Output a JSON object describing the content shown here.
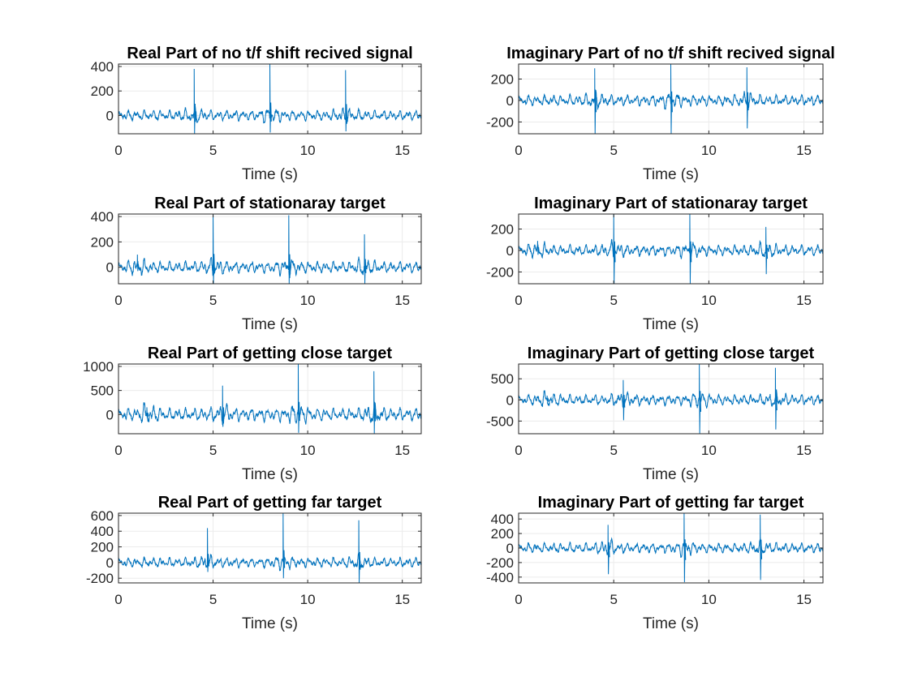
{
  "figure": {
    "background": "#ffffff",
    "line_color": "#0072bd",
    "grid_color": "#ebebeb",
    "axis_color": "#262626"
  },
  "chart_data": [
    {
      "type": "line",
      "title": "Real Part of no t/f shift recived signal",
      "xlabel": "Time (s)",
      "ylabel": "",
      "xlim": [
        0,
        16
      ],
      "ylim": [
        -150,
        420
      ],
      "xticks": [
        0,
        5,
        10,
        15
      ],
      "yticks": [
        0,
        200,
        400
      ],
      "grid": true,
      "series": [
        {
          "x_range": [
            0,
            16
          ],
          "noise_amplitude": 38,
          "spikes": [
            {
              "t": 4.0,
              "peak": 380,
              "trough": -150
            },
            {
              "t": 8.0,
              "peak": 420,
              "trough": -140
            },
            {
              "t": 12.0,
              "peak": 370,
              "trough": -130
            }
          ]
        }
      ]
    },
    {
      "type": "line",
      "title": "Imaginary Part of no t/f shift recived signal",
      "xlabel": "Time (s)",
      "ylabel": "",
      "xlim": [
        0,
        16
      ],
      "ylim": [
        -310,
        340
      ],
      "xticks": [
        0,
        5,
        10,
        15
      ],
      "yticks": [
        -200,
        0,
        200
      ],
      "grid": true,
      "series": [
        {
          "x_range": [
            0,
            16
          ],
          "noise_amplitude": 45,
          "spikes": [
            {
              "t": 4.0,
              "peak": 300,
              "trough": -310
            },
            {
              "t": 8.0,
              "peak": 340,
              "trough": -310
            },
            {
              "t": 12.0,
              "peak": 310,
              "trough": -260
            }
          ]
        }
      ]
    },
    {
      "type": "line",
      "title": "Real Part of stationaray target",
      "xlabel": "Time (s)",
      "ylabel": "",
      "xlim": [
        0,
        16
      ],
      "ylim": [
        -130,
        420
      ],
      "xticks": [
        0,
        5,
        10,
        15
      ],
      "yticks": [
        0,
        200,
        400
      ],
      "grid": true,
      "series": [
        {
          "x_range": [
            0,
            16
          ],
          "noise_amplitude": 40,
          "spikes": [
            {
              "t": 1.0,
              "peak": 100,
              "trough": -30
            },
            {
              "t": 5.0,
              "peak": 420,
              "trough": -130
            },
            {
              "t": 9.0,
              "peak": 410,
              "trough": -130
            },
            {
              "t": 13.0,
              "peak": 260,
              "trough": -130
            }
          ]
        }
      ]
    },
    {
      "type": "line",
      "title": "Imaginary Part of stationaray target",
      "xlabel": "Time (s)",
      "ylabel": "",
      "xlim": [
        0,
        16
      ],
      "ylim": [
        -310,
        340
      ],
      "xticks": [
        0,
        5,
        10,
        15
      ],
      "yticks": [
        -200,
        0,
        200
      ],
      "grid": true,
      "series": [
        {
          "x_range": [
            0,
            16
          ],
          "noise_amplitude": 45,
          "spikes": [
            {
              "t": 1.0,
              "peak": 90,
              "trough": -40
            },
            {
              "t": 5.0,
              "peak": 340,
              "trough": -310
            },
            {
              "t": 9.0,
              "peak": 340,
              "trough": -310
            },
            {
              "t": 13.0,
              "peak": 220,
              "trough": -220
            }
          ]
        }
      ]
    },
    {
      "type": "line",
      "title": "Real Part of getting close target",
      "xlabel": "Time (s)",
      "ylabel": "",
      "xlim": [
        0,
        16
      ],
      "ylim": [
        -400,
        1050
      ],
      "xticks": [
        0,
        5,
        10,
        15
      ],
      "yticks": [
        0,
        500,
        1000
      ],
      "grid": true,
      "series": [
        {
          "x_range": [
            0,
            16
          ],
          "noise_amplitude": 120,
          "spikes": [
            {
              "t": 1.5,
              "peak": 150,
              "trough": -50
            },
            {
              "t": 5.5,
              "peak": 600,
              "trough": -200
            },
            {
              "t": 9.5,
              "peak": 1050,
              "trough": -380
            },
            {
              "t": 13.5,
              "peak": 900,
              "trough": -400
            }
          ]
        }
      ]
    },
    {
      "type": "line",
      "title": "Imaginary Part of getting close target",
      "xlabel": "Time (s)",
      "ylabel": "",
      "xlim": [
        0,
        16
      ],
      "ylim": [
        -800,
        850
      ],
      "xticks": [
        0,
        5,
        10,
        15
      ],
      "yticks": [
        -500,
        0,
        500
      ],
      "grid": true,
      "series": [
        {
          "x_range": [
            0,
            16
          ],
          "noise_amplitude": 110,
          "spikes": [
            {
              "t": 1.5,
              "peak": 100,
              "trough": -40
            },
            {
              "t": 5.5,
              "peak": 470,
              "trough": -480
            },
            {
              "t": 9.5,
              "peak": 850,
              "trough": -800
            },
            {
              "t": 13.5,
              "peak": 760,
              "trough": -700
            }
          ]
        }
      ]
    },
    {
      "type": "line",
      "title": "Real Part of getting far target",
      "xlabel": "Time (s)",
      "ylabel": "",
      "xlim": [
        0,
        16
      ],
      "ylim": [
        -260,
        630
      ],
      "xticks": [
        0,
        5,
        10,
        15
      ],
      "yticks": [
        -200,
        0,
        200,
        400,
        600
      ],
      "grid": true,
      "series": [
        {
          "x_range": [
            0,
            16
          ],
          "noise_amplitude": 55,
          "spikes": [
            {
              "t": 4.7,
              "peak": 440,
              "trough": -120
            },
            {
              "t": 8.7,
              "peak": 630,
              "trough": -200
            },
            {
              "t": 12.7,
              "peak": 540,
              "trough": -260
            }
          ]
        }
      ]
    },
    {
      "type": "line",
      "title": "Imaginary Part of getting far target",
      "xlabel": "Time (s)",
      "ylabel": "",
      "xlim": [
        0,
        16
      ],
      "ylim": [
        -480,
        480
      ],
      "xticks": [
        0,
        5,
        10,
        15
      ],
      "yticks": [
        -400,
        -200,
        0,
        200,
        400
      ],
      "grid": true,
      "series": [
        {
          "x_range": [
            0,
            16
          ],
          "noise_amplitude": 60,
          "spikes": [
            {
              "t": 4.7,
              "peak": 320,
              "trough": -360
            },
            {
              "t": 8.7,
              "peak": 480,
              "trough": -470
            },
            {
              "t": 12.7,
              "peak": 460,
              "trough": -440
            }
          ]
        }
      ]
    }
  ]
}
